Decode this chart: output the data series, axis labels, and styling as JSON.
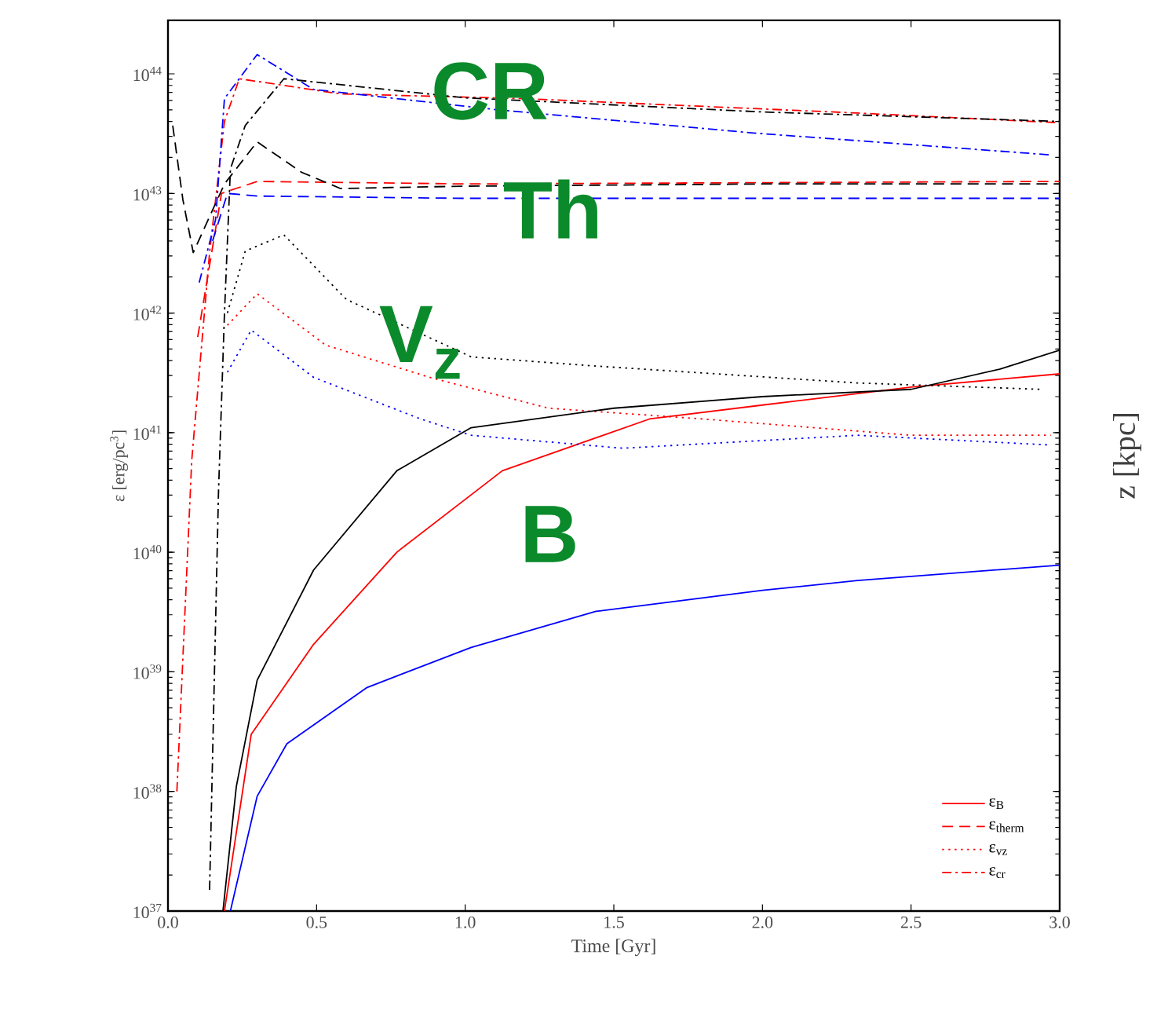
{
  "chart_data": {
    "type": "line",
    "xlabel": "Time [Gyr]",
    "ylabel": "ε [erg/pc$^{3}$]",
    "log": true,
    "xlim": [
      0,
      3
    ],
    "ylim": [
      1e+37,
      2.8e+44
    ],
    "xticks": [
      {
        "value": 0,
        "label": "0.0"
      },
      {
        "value": 0.5,
        "label": "0.5"
      },
      {
        "value": 1,
        "label": "1.0"
      },
      {
        "value": 1.5,
        "label": "1.5"
      },
      {
        "value": 2,
        "label": "2.0"
      },
      {
        "value": 2.5,
        "label": "2.5"
      },
      {
        "value": 3,
        "label": "3.0"
      }
    ],
    "yticks": [
      {
        "value": 1e+37,
        "label": "10$^{37}$"
      },
      {
        "value": 1e+38,
        "label": "10$^{38}$"
      },
      {
        "value": 1e+39,
        "label": "10$^{39}$"
      },
      {
        "value": 1e+40,
        "label": "10$^{40}$"
      },
      {
        "value": 1e+41,
        "label": "10$^{41}$"
      },
      {
        "value": 1e+42,
        "label": "10$^{42}$"
      },
      {
        "value": 1e+43,
        "label": "10$^{43}$"
      },
      {
        "value": 1e+44,
        "label": "10$^{44}$"
      }
    ],
    "legend": "bottom right",
    "series": [
      {
        "name": "ε$_{B}$",
        "color": "#ff0000",
        "line_style": "solid",
        "x": [
          0.19,
          0.28,
          0.49,
          0.77,
          1.125,
          1.62,
          2.0,
          2.5,
          3.0
        ],
        "values": [
          1e+37,
          3e+38,
          1.7e+39,
          1e+40,
          4.8e+40,
          1.3e+41,
          1.7e+41,
          2.4e+41,
          3.1e+41
        ]
      },
      {
        "name": "ε$_{therm}$",
        "color": "#ff0000",
        "line_style": "dashed",
        "x": [
          0.1,
          0.18,
          0.3,
          1.0,
          2.0,
          3.0
        ],
        "values": [
          6.3e+41,
          1e+43,
          1.26e+43,
          1.2e+43,
          1.23e+43,
          1.26e+43
        ]
      },
      {
        "name": "ε$_{vz}$",
        "color": "#ff0000",
        "line_style": "dotted",
        "x": [
          0.2,
          0.3,
          0.53,
          0.88,
          1.28,
          1.8,
          2.5,
          2.97
        ],
        "values": [
          7.9e+41,
          1.45e+42,
          5.4e+41,
          2.9e+41,
          1.6e+41,
          1.3e+41,
          9.5e+40,
          9.5e+40
        ]
      },
      {
        "name": "ε$_{cr}$",
        "color": "#ff0000",
        "line_style": "dashdot",
        "x": [
          0.03,
          0.08,
          0.14,
          0.19,
          0.24,
          0.58,
          1.2,
          2.32,
          3.0
        ],
        "values": [
          1e+38,
          5.9e+40,
          3.2e+42,
          4e+43,
          9.1e+43,
          6.8e+43,
          6.2e+43,
          4.7e+43,
          3.9e+43
        ]
      },
      {
        "color": "#000000",
        "line_style": "solid",
        "x": [
          0.185,
          0.23,
          0.3,
          0.49,
          0.77,
          1.02,
          1.5,
          2.0,
          2.5,
          2.8,
          3.0
        ],
        "values": [
          1e+37,
          1.1e+38,
          8.5e+38,
          7.1e+39,
          4.8e+40,
          1.1e+41,
          1.6e+41,
          2e+41,
          2.3e+41,
          3.4e+41,
          4.9e+41
        ]
      },
      {
        "color": "#0000ff",
        "line_style": "solid",
        "x": [
          0.21,
          0.3,
          0.4,
          0.67,
          1.02,
          1.44,
          2.0,
          2.32,
          3.0
        ],
        "values": [
          1e+37,
          9.1e+37,
          2.5e+38,
          7.4e+38,
          1.6e+39,
          3.2e+39,
          4.8e+39,
          5.8e+39,
          7.8e+39
        ]
      },
      {
        "color": "#000000",
        "line_style": "dashed",
        "x": [
          0.016,
          0.05,
          0.085,
          0.19,
          0.3,
          0.45,
          0.58,
          1.0,
          2.0,
          3.0
        ],
        "values": [
          3.7e+43,
          8.9e+42,
          3.2e+42,
          1.2e+43,
          2.7e+43,
          1.5e+43,
          1.1e+43,
          1.15e+43,
          1.2e+43,
          1.2e+43
        ]
      },
      {
        "color": "#0000ff",
        "line_style": "dashed",
        "x": [
          0.15,
          0.2,
          0.3,
          1.0,
          2.0,
          3.0
        ],
        "values": [
          4e+42,
          1e+43,
          9.5e+42,
          9.1e+42,
          9.1e+42,
          9.1e+42
        ]
      },
      {
        "color": "#000000",
        "line_style": "dotted",
        "x": [
          0.2,
          0.26,
          0.39,
          0.6,
          1.02,
          1.44,
          2.32,
          2.94
        ],
        "values": [
          1e+42,
          3.3e+42,
          4.5e+42,
          1.3e+42,
          4.3e+41,
          3.6e+41,
          2.6e+41,
          2.3e+41
        ]
      },
      {
        "color": "#0000ff",
        "line_style": "dotted",
        "x": [
          0.2,
          0.28,
          0.49,
          0.85,
          1.02,
          1.53,
          2.32,
          2.96
        ],
        "values": [
          3.2e+41,
          7.2e+41,
          2.9e+41,
          1.3e+41,
          9.5e+40,
          7.4e+40,
          9.5e+40,
          7.9e+40
        ]
      },
      {
        "color": "#000000",
        "line_style": "dashdot",
        "x": [
          0.14,
          0.17,
          0.19,
          0.21,
          0.26,
          0.39,
          1.0,
          2.0,
          3.0
        ],
        "values": [
          1.5e+37,
          3.2e+40,
          9.8e+41,
          1.6e+43,
          3.7e+43,
          9.1e+43,
          6.3e+43,
          4.8e+43,
          4e+43
        ]
      },
      {
        "color": "#0000ff",
        "line_style": "dashdot",
        "x": [
          0.105,
          0.16,
          0.19,
          0.3,
          0.49,
          1.11,
          1.97,
          2.97
        ],
        "values": [
          1.8e+42,
          6e+42,
          6.2e+43,
          1.45e+44,
          7.4e+43,
          5e+43,
          3.2e+43,
          2.1e+43
        ]
      }
    ],
    "annotations": [
      "CR",
      "Th",
      "V$_{z}$",
      "B",
      "z [kpc]"
    ]
  }
}
